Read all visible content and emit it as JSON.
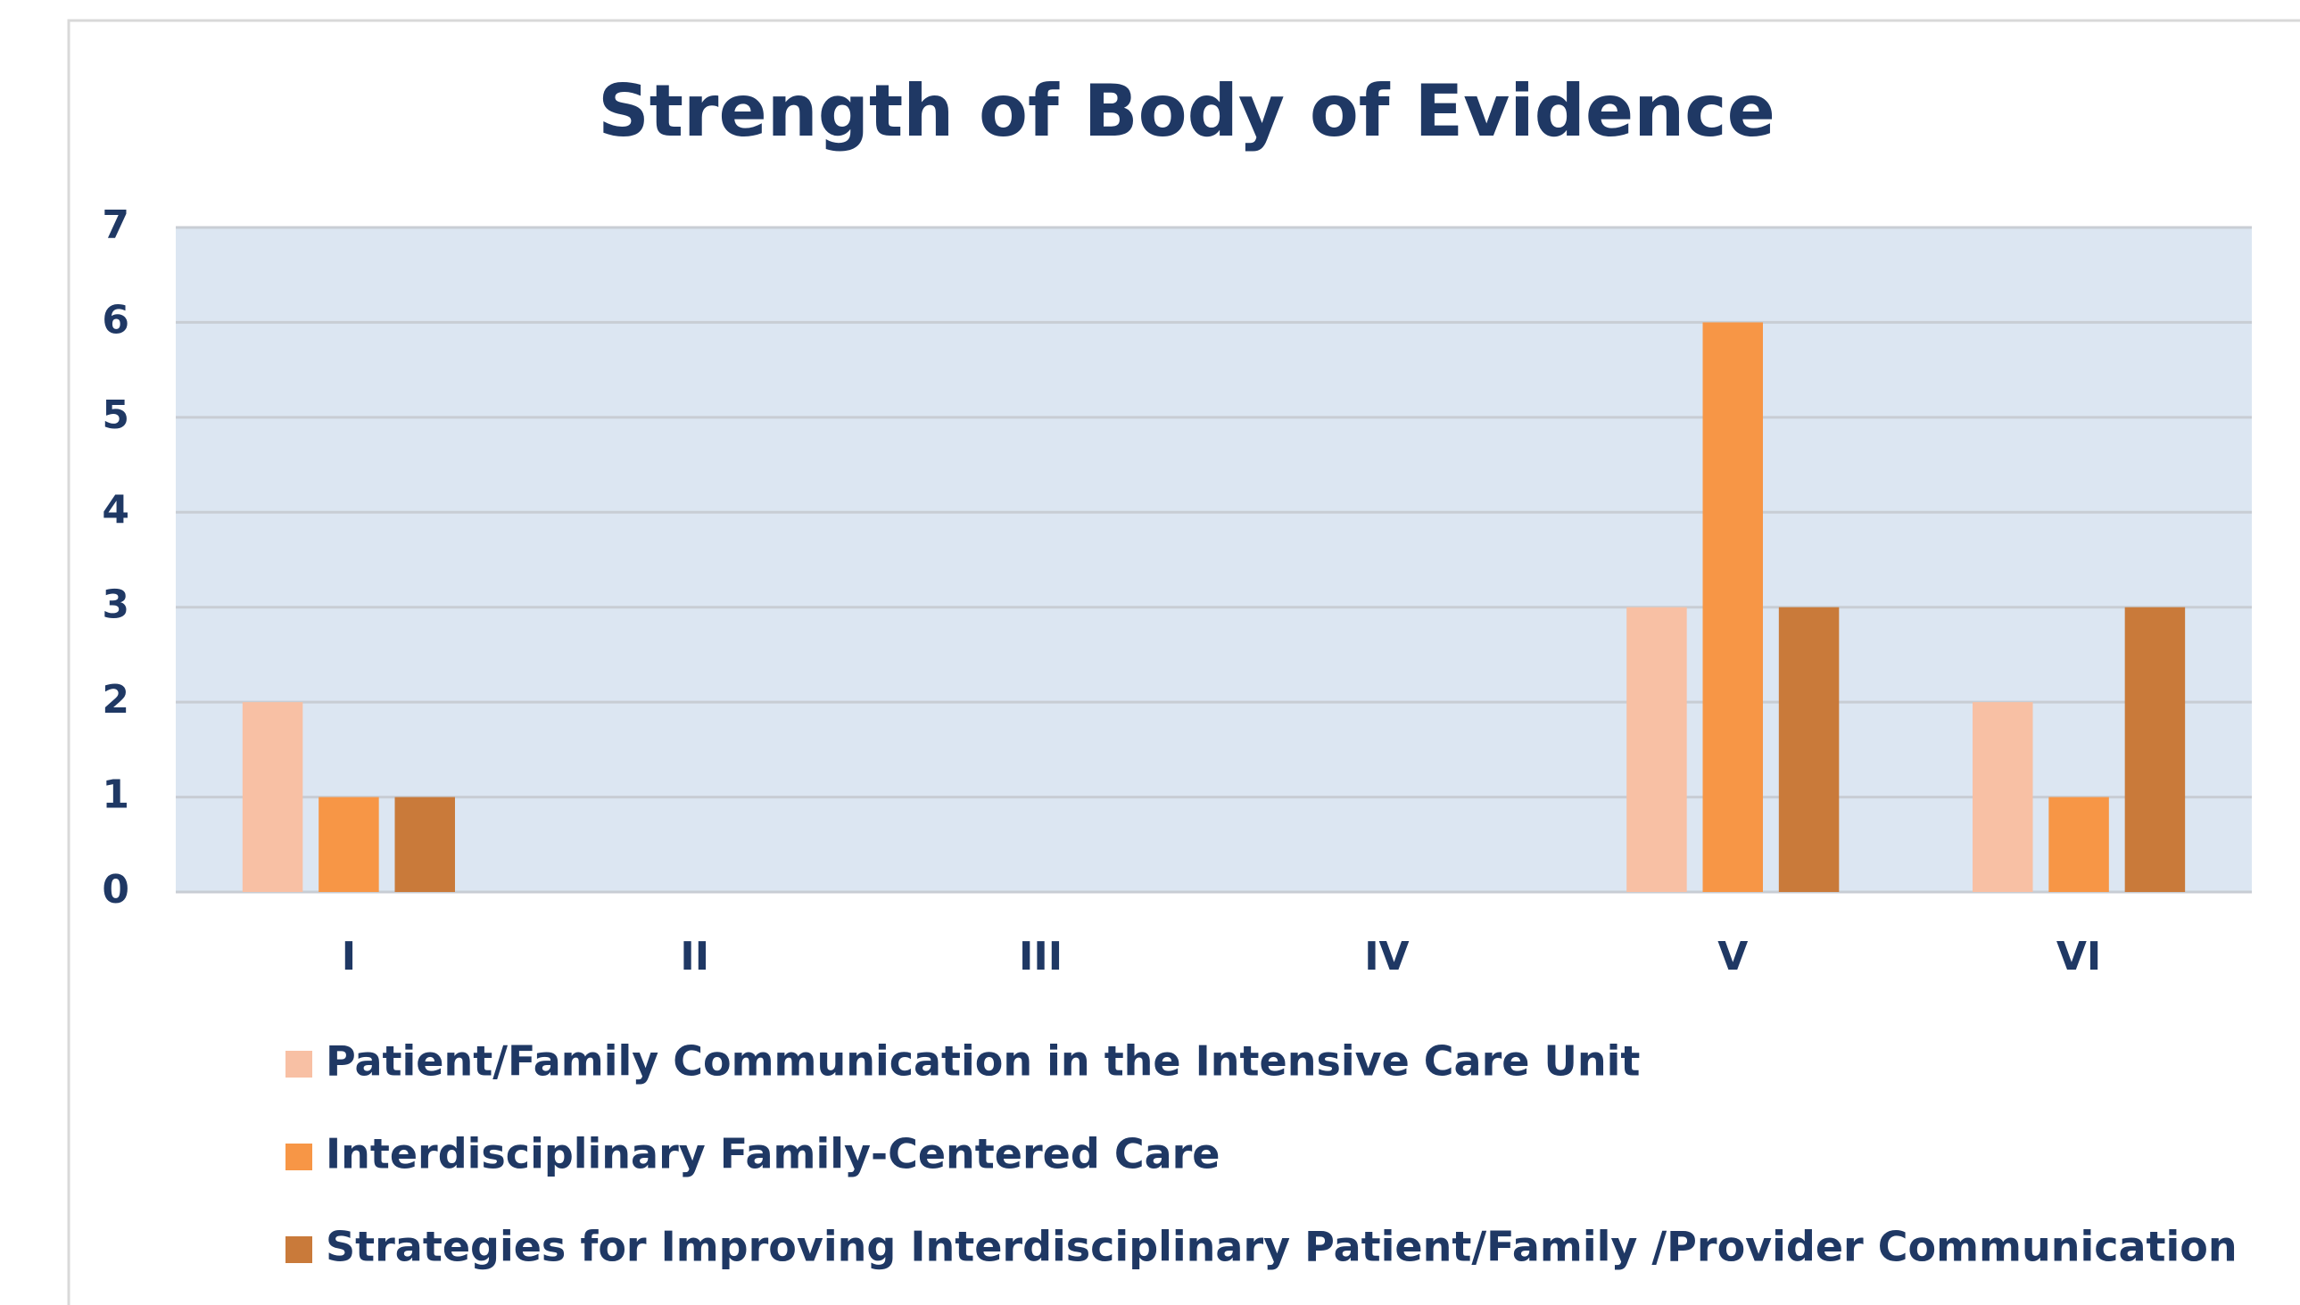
{
  "chart_data": {
    "type": "bar",
    "title": "Strength of Body of Evidence",
    "categories": [
      "I",
      "II",
      "III",
      "IV",
      "V",
      "VI"
    ],
    "series": [
      {
        "name": "Patient/Family Communication in the Intensive Care Unit",
        "color": "#f8c0a4",
        "values": [
          2,
          0,
          0,
          0,
          3,
          2
        ]
      },
      {
        "name": "Interdisciplinary Family-Centered Care",
        "color": "#f79646",
        "values": [
          1,
          0,
          0,
          0,
          6,
          1
        ]
      },
      {
        "name": "Strategies for Improving Interdisciplinary Patient/Family /Provider Communication",
        "color": "#c97a3a",
        "values": [
          1,
          0,
          0,
          0,
          3,
          3
        ]
      }
    ],
    "ylim": [
      0,
      7
    ],
    "yticks": [
      0,
      1,
      2,
      3,
      4,
      5,
      6,
      7
    ],
    "grid": true,
    "legend": "bottom"
  }
}
